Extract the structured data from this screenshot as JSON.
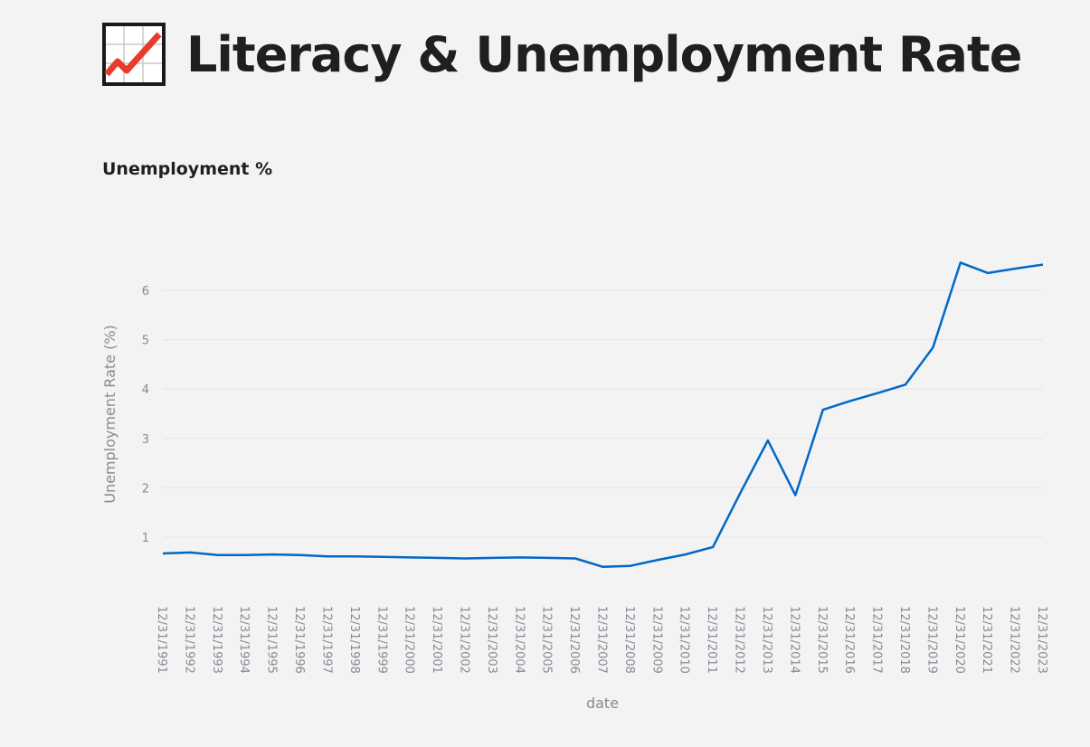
{
  "header": {
    "title": "Literacy & Unemployment Rate",
    "icon": "chart-increasing-icon"
  },
  "section": {
    "title": "Unemployment %"
  },
  "colors": {
    "line": "#0068c9",
    "grid": "#e4e4e8",
    "axis_text": "#858a94",
    "background": "#f3f3f3",
    "icon_line": "#e63c2b"
  },
  "chart_data": {
    "type": "line",
    "x": [
      "12/31/1991",
      "12/31/1992",
      "12/31/1993",
      "12/31/1994",
      "12/31/1995",
      "12/31/1996",
      "12/31/1997",
      "12/31/1998",
      "12/31/1999",
      "12/31/2000",
      "12/31/2001",
      "12/31/2002",
      "12/31/2003",
      "12/31/2004",
      "12/31/2005",
      "12/31/2006",
      "12/31/2007",
      "12/31/2008",
      "12/31/2009",
      "12/31/2010",
      "12/31/2011",
      "12/31/2012",
      "12/31/2013",
      "12/31/2014",
      "12/31/2015",
      "12/31/2016",
      "12/31/2017",
      "12/31/2018",
      "12/31/2019",
      "12/31/2020",
      "12/31/2021",
      "12/31/2022",
      "12/31/2023"
    ],
    "series": [
      {
        "values": [
          0.67,
          0.69,
          0.64,
          0.64,
          0.65,
          0.64,
          0.61,
          0.61,
          0.6,
          0.59,
          0.58,
          0.57,
          0.58,
          0.59,
          0.58,
          0.57,
          0.4,
          0.42,
          0.54,
          0.65,
          0.8,
          1.9,
          2.96,
          1.85,
          3.58,
          3.76,
          3.92,
          4.09,
          4.84,
          6.56,
          6.35,
          6.44,
          6.52
        ]
      }
    ],
    "xlabel": "date",
    "ylabel": "Unemployment Rate (%)",
    "yticks": [
      1,
      2,
      3,
      4,
      5,
      6
    ],
    "ylim": [
      -0.1,
      7.2
    ],
    "grid": true
  }
}
